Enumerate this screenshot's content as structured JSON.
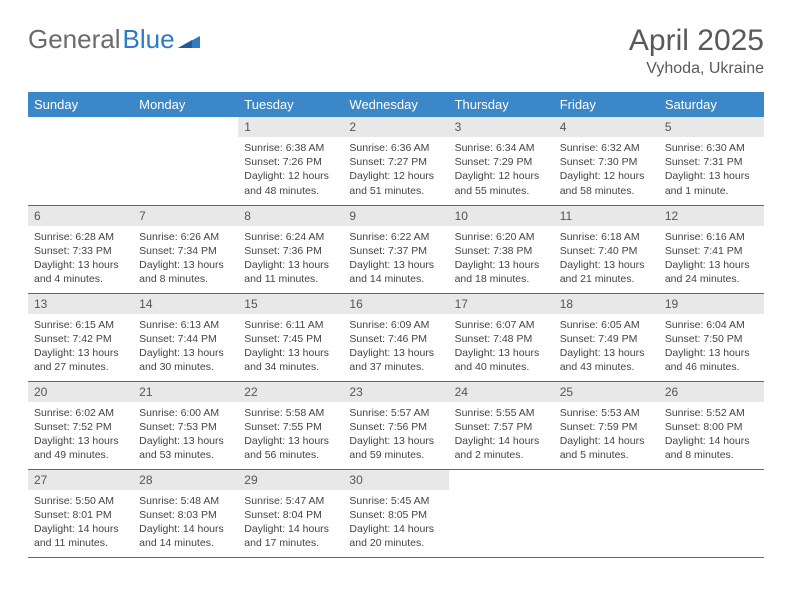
{
  "logo": {
    "part1": "General",
    "part2": "Blue"
  },
  "title": {
    "month": "April 2025",
    "location": "Vyhoda, Ukraine"
  },
  "colors": {
    "header_bg": "#3b87c8",
    "header_text": "#ffffff",
    "daynum_bg": "#e8e8e8",
    "border": "#3b6fa0",
    "logo_gray": "#6b6b6b",
    "logo_blue": "#2d7bc0",
    "title_color": "#595959"
  },
  "weekdays": [
    "Sunday",
    "Monday",
    "Tuesday",
    "Wednesday",
    "Thursday",
    "Friday",
    "Saturday"
  ],
  "weeks": [
    [
      null,
      null,
      {
        "n": "1",
        "sr": "6:38 AM",
        "ss": "7:26 PM",
        "dl": "12 hours and 48 minutes."
      },
      {
        "n": "2",
        "sr": "6:36 AM",
        "ss": "7:27 PM",
        "dl": "12 hours and 51 minutes."
      },
      {
        "n": "3",
        "sr": "6:34 AM",
        "ss": "7:29 PM",
        "dl": "12 hours and 55 minutes."
      },
      {
        "n": "4",
        "sr": "6:32 AM",
        "ss": "7:30 PM",
        "dl": "12 hours and 58 minutes."
      },
      {
        "n": "5",
        "sr": "6:30 AM",
        "ss": "7:31 PM",
        "dl": "13 hours and 1 minute."
      }
    ],
    [
      {
        "n": "6",
        "sr": "6:28 AM",
        "ss": "7:33 PM",
        "dl": "13 hours and 4 minutes."
      },
      {
        "n": "7",
        "sr": "6:26 AM",
        "ss": "7:34 PM",
        "dl": "13 hours and 8 minutes."
      },
      {
        "n": "8",
        "sr": "6:24 AM",
        "ss": "7:36 PM",
        "dl": "13 hours and 11 minutes."
      },
      {
        "n": "9",
        "sr": "6:22 AM",
        "ss": "7:37 PM",
        "dl": "13 hours and 14 minutes."
      },
      {
        "n": "10",
        "sr": "6:20 AM",
        "ss": "7:38 PM",
        "dl": "13 hours and 18 minutes."
      },
      {
        "n": "11",
        "sr": "6:18 AM",
        "ss": "7:40 PM",
        "dl": "13 hours and 21 minutes."
      },
      {
        "n": "12",
        "sr": "6:16 AM",
        "ss": "7:41 PM",
        "dl": "13 hours and 24 minutes."
      }
    ],
    [
      {
        "n": "13",
        "sr": "6:15 AM",
        "ss": "7:42 PM",
        "dl": "13 hours and 27 minutes."
      },
      {
        "n": "14",
        "sr": "6:13 AM",
        "ss": "7:44 PM",
        "dl": "13 hours and 30 minutes."
      },
      {
        "n": "15",
        "sr": "6:11 AM",
        "ss": "7:45 PM",
        "dl": "13 hours and 34 minutes."
      },
      {
        "n": "16",
        "sr": "6:09 AM",
        "ss": "7:46 PM",
        "dl": "13 hours and 37 minutes."
      },
      {
        "n": "17",
        "sr": "6:07 AM",
        "ss": "7:48 PM",
        "dl": "13 hours and 40 minutes."
      },
      {
        "n": "18",
        "sr": "6:05 AM",
        "ss": "7:49 PM",
        "dl": "13 hours and 43 minutes."
      },
      {
        "n": "19",
        "sr": "6:04 AM",
        "ss": "7:50 PM",
        "dl": "13 hours and 46 minutes."
      }
    ],
    [
      {
        "n": "20",
        "sr": "6:02 AM",
        "ss": "7:52 PM",
        "dl": "13 hours and 49 minutes."
      },
      {
        "n": "21",
        "sr": "6:00 AM",
        "ss": "7:53 PM",
        "dl": "13 hours and 53 minutes."
      },
      {
        "n": "22",
        "sr": "5:58 AM",
        "ss": "7:55 PM",
        "dl": "13 hours and 56 minutes."
      },
      {
        "n": "23",
        "sr": "5:57 AM",
        "ss": "7:56 PM",
        "dl": "13 hours and 59 minutes."
      },
      {
        "n": "24",
        "sr": "5:55 AM",
        "ss": "7:57 PM",
        "dl": "14 hours and 2 minutes."
      },
      {
        "n": "25",
        "sr": "5:53 AM",
        "ss": "7:59 PM",
        "dl": "14 hours and 5 minutes."
      },
      {
        "n": "26",
        "sr": "5:52 AM",
        "ss": "8:00 PM",
        "dl": "14 hours and 8 minutes."
      }
    ],
    [
      {
        "n": "27",
        "sr": "5:50 AM",
        "ss": "8:01 PM",
        "dl": "14 hours and 11 minutes."
      },
      {
        "n": "28",
        "sr": "5:48 AM",
        "ss": "8:03 PM",
        "dl": "14 hours and 14 minutes."
      },
      {
        "n": "29",
        "sr": "5:47 AM",
        "ss": "8:04 PM",
        "dl": "14 hours and 17 minutes."
      },
      {
        "n": "30",
        "sr": "5:45 AM",
        "ss": "8:05 PM",
        "dl": "14 hours and 20 minutes."
      },
      null,
      null,
      null
    ]
  ],
  "labels": {
    "sunrise": "Sunrise:",
    "sunset": "Sunset:",
    "daylight": "Daylight:"
  }
}
